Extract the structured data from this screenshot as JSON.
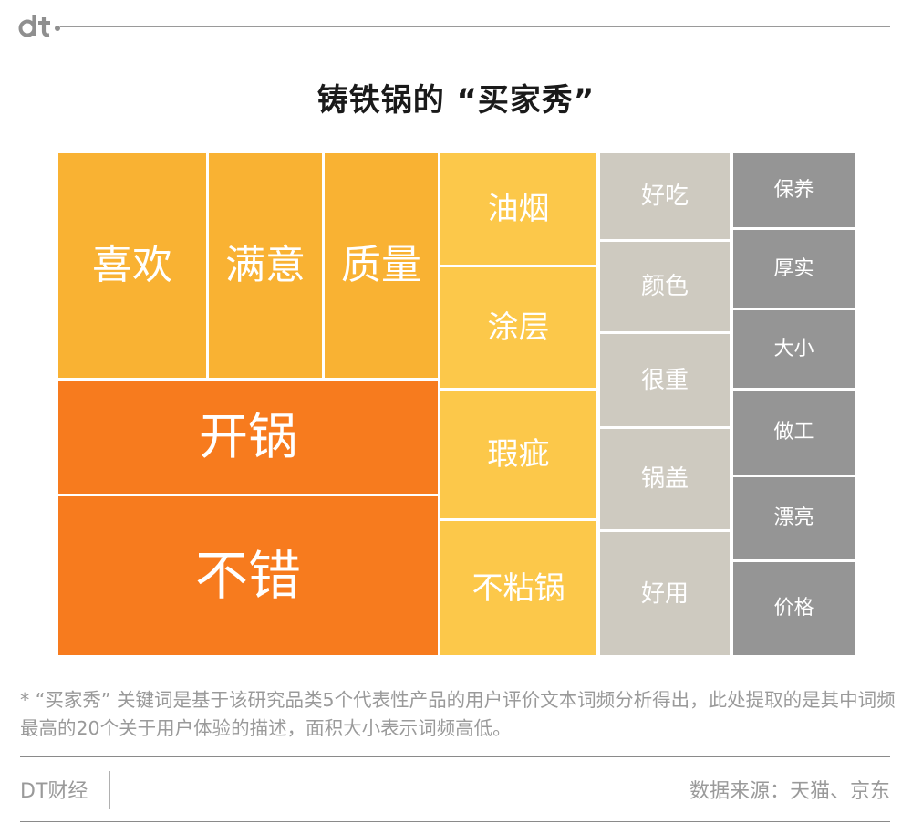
{
  "header": {
    "logo_text": "dt",
    "title": "铸铁锅的 “买家秀”"
  },
  "chart_data": {
    "type": "treemap",
    "title": "铸铁锅的 “买家秀”",
    "unit_note": "面积大小表示词频高低",
    "items": [
      {
        "label": "喜欢",
        "value": 4.4,
        "color": "#f9b233"
      },
      {
        "label": "满意",
        "value": 3.4,
        "color": "#f9b233"
      },
      {
        "label": "质量",
        "value": 3.4,
        "color": "#f9b233"
      },
      {
        "label": "开锅",
        "value": 5.6,
        "color": "#f77b1e"
      },
      {
        "label": "不错",
        "value": 6.4,
        "color": "#f77b1e"
      },
      {
        "label": "油烟",
        "value": 2.1,
        "color": "#fcc84a"
      },
      {
        "label": "涂层",
        "value": 2.4,
        "color": "#fcc84a"
      },
      {
        "label": "瑕疵",
        "value": 2.4,
        "color": "#fcc84a"
      },
      {
        "label": "不粘锅",
        "value": 2.4,
        "color": "#fcc84a"
      },
      {
        "label": "好吃",
        "value": 1.4,
        "color": "#cecac0"
      },
      {
        "label": "颜色",
        "value": 1.4,
        "color": "#cecac0"
      },
      {
        "label": "很重",
        "value": 1.4,
        "color": "#cecac0"
      },
      {
        "label": "锅盖",
        "value": 1.6,
        "color": "#cecac0"
      },
      {
        "label": "好用",
        "value": 2.0,
        "color": "#cecac0"
      },
      {
        "label": "保养",
        "value": 1.0,
        "color": "#959595"
      },
      {
        "label": "厚实",
        "value": 1.1,
        "color": "#959595"
      },
      {
        "label": "大小",
        "value": 1.1,
        "color": "#959595"
      },
      {
        "label": "做工",
        "value": 1.2,
        "color": "#959595"
      },
      {
        "label": "漂亮",
        "value": 1.1,
        "color": "#959595"
      },
      {
        "label": "价格",
        "value": 1.3,
        "color": "#959595"
      }
    ]
  },
  "footnote": "* “买家秀” 关键词是基于该研究品类5个代表性产品的用户评价文本词频分析得出，此处提取的是其中词频最高的20个关于用户体验的描述，面积大小表示词频高低。",
  "footer": {
    "brand": "DT财经",
    "source": "数据来源：天猫、京东"
  }
}
